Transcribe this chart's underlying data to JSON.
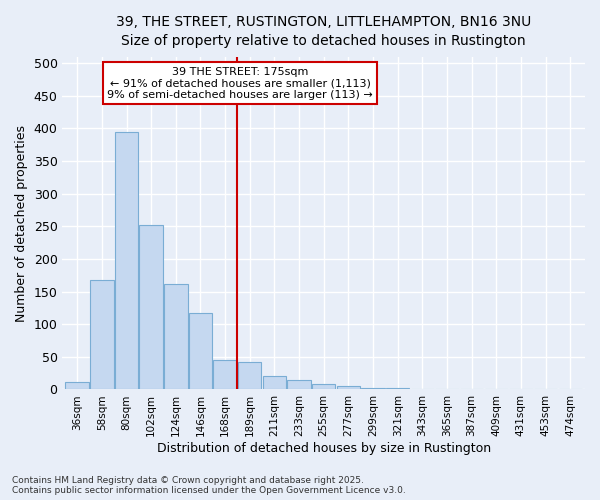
{
  "title_line1": "39, THE STREET, RUSTINGTON, LITTLEHAMPTON, BN16 3NU",
  "title_line2": "Size of property relative to detached houses in Rustington",
  "xlabel": "Distribution of detached houses by size in Rustington",
  "ylabel": "Number of detached properties",
  "footer": "Contains HM Land Registry data © Crown copyright and database right 2025.\nContains public sector information licensed under the Open Government Licence v3.0.",
  "bin_labels": [
    "36sqm",
    "58sqm",
    "80sqm",
    "102sqm",
    "124sqm",
    "146sqm",
    "168sqm",
    "189sqm",
    "211sqm",
    "233sqm",
    "255sqm",
    "277sqm",
    "299sqm",
    "321sqm",
    "343sqm",
    "365sqm",
    "387sqm",
    "409sqm",
    "431sqm",
    "453sqm",
    "474sqm"
  ],
  "bar_heights": [
    11,
    168,
    394,
    252,
    161,
    117,
    45,
    42,
    20,
    14,
    9,
    6,
    3,
    2,
    1,
    1,
    1,
    1,
    1,
    1,
    1
  ],
  "bar_color": "#c5d8f0",
  "bar_edge_color": "#7aadd4",
  "vline_x": 6.5,
  "vline_color": "#cc0000",
  "annotation_text_line1": "39 THE STREET: 175sqm",
  "annotation_text_line2": "← 91% of detached houses are smaller (1,113)",
  "annotation_text_line3": "9% of semi-detached houses are larger (113) →",
  "annotation_color": "#cc0000",
  "bg_color": "#e8eef8",
  "grid_color": "#ffffff",
  "ylim": [
    0,
    510
  ],
  "yticks": [
    0,
    50,
    100,
    150,
    200,
    250,
    300,
    350,
    400,
    450,
    500
  ]
}
